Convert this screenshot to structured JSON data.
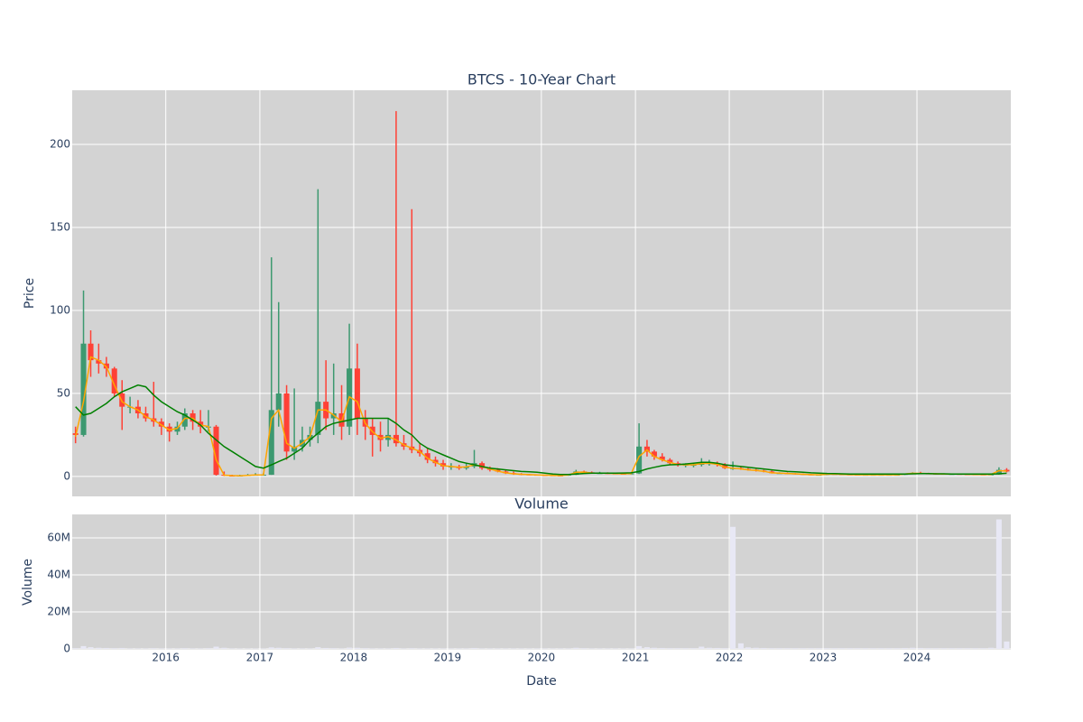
{
  "chart_data": {
    "type": "candlestick",
    "title": "BTCS - 10-Year Chart",
    "ylabel": "Price",
    "xlabel": "Date",
    "background": "#d3d3d3",
    "grid": true,
    "increasing_color": "#3d9970",
    "decreasing_color": "#ff4136",
    "x": [
      "2015-01",
      "2015-02",
      "2015-03",
      "2015-04",
      "2015-05",
      "2015-06",
      "2015-07",
      "2015-08",
      "2015-09",
      "2015-10",
      "2015-11",
      "2015-12",
      "2016-01",
      "2016-02",
      "2016-03",
      "2016-04",
      "2016-05",
      "2016-06",
      "2016-07",
      "2016-08",
      "2016-09",
      "2016-10",
      "2016-11",
      "2016-12",
      "2017-01",
      "2017-02",
      "2017-03",
      "2017-04",
      "2017-05",
      "2017-06",
      "2017-07",
      "2017-08",
      "2017-09",
      "2017-10",
      "2017-11",
      "2017-12",
      "2018-01",
      "2018-02",
      "2018-03",
      "2018-04",
      "2018-05",
      "2018-06",
      "2018-07",
      "2018-08",
      "2018-09",
      "2018-10",
      "2018-11",
      "2018-12",
      "2019-01",
      "2019-02",
      "2019-03",
      "2019-04",
      "2019-05",
      "2019-06",
      "2019-07",
      "2019-08",
      "2019-09",
      "2019-10",
      "2019-11",
      "2019-12",
      "2020-01",
      "2020-02",
      "2020-03",
      "2020-04",
      "2020-05",
      "2020-06",
      "2020-07",
      "2020-08",
      "2020-09",
      "2020-10",
      "2020-11",
      "2020-12",
      "2021-01",
      "2021-02",
      "2021-03",
      "2021-04",
      "2021-05",
      "2021-06",
      "2021-07",
      "2021-08",
      "2021-09",
      "2021-10",
      "2021-11",
      "2021-12",
      "2022-01",
      "2022-02",
      "2022-03",
      "2022-04",
      "2022-05",
      "2022-06",
      "2022-07",
      "2022-08",
      "2022-09",
      "2022-10",
      "2022-11",
      "2022-12",
      "2023-01",
      "2023-02",
      "2023-03",
      "2023-04",
      "2023-05",
      "2023-06",
      "2023-07",
      "2023-08",
      "2023-09",
      "2023-10",
      "2023-11",
      "2023-12",
      "2024-01",
      "2024-02",
      "2024-03",
      "2024-04",
      "2024-05",
      "2024-06",
      "2024-07",
      "2024-08",
      "2024-09",
      "2024-10",
      "2024-11",
      "2024-12"
    ],
    "open": [
      26,
      25,
      80,
      70,
      68,
      65,
      50,
      42,
      42,
      38,
      35,
      33,
      30,
      27,
      30,
      38,
      33,
      30,
      30,
      1,
      0.5,
      0.3,
      0.5,
      0.8,
      1,
      1,
      40,
      50,
      15,
      18,
      22,
      25,
      45,
      35,
      38,
      30,
      65,
      35,
      30,
      25,
      22,
      25,
      20,
      18,
      16,
      14,
      10,
      8,
      6,
      6,
      5,
      6,
      8,
      5,
      4,
      3,
      2,
      1.5,
      1.2,
      1,
      0.8,
      0.7,
      0.6,
      0.5,
      1,
      3,
      2.5,
      2,
      2,
      1.8,
      1.6,
      1.5,
      1.8,
      18,
      15,
      12,
      10,
      8,
      7,
      7,
      7,
      8,
      8,
      7,
      5,
      5,
      4.5,
      4,
      3.5,
      3,
      2,
      2,
      1.8,
      1.5,
      1.2,
      1,
      1,
      1.5,
      1.4,
      1.2,
      1.1,
      1,
      1,
      1,
      1,
      1,
      1,
      1.5,
      2,
      1.8,
      1.7,
      1.6,
      1.5,
      1.5,
      1.4,
      1.3,
      1.2,
      1.1,
      1.2,
      4
    ],
    "high": [
      30,
      112,
      88,
      80,
      72,
      66,
      58,
      48,
      46,
      42,
      57,
      35,
      32,
      33,
      41,
      40,
      40,
      40,
      31,
      3,
      1,
      1,
      1.5,
      2,
      2,
      132,
      105,
      55,
      53,
      30,
      30,
      173,
      70,
      68,
      55,
      92,
      80,
      40,
      35,
      33,
      35,
      220,
      25,
      161,
      20,
      17,
      12,
      10,
      8,
      7,
      8,
      16,
      9,
      6,
      5,
      4,
      3,
      2,
      1.5,
      1.2,
      1,
      0.9,
      0.8,
      1.5,
      4,
      3.5,
      3,
      2.8,
      2.5,
      2.2,
      2,
      2.5,
      32,
      22,
      16,
      14,
      11,
      9,
      8,
      8,
      11,
      10,
      9,
      8,
      9,
      6,
      5,
      4.5,
      4,
      3.5,
      2.5,
      2.4,
      2,
      1.8,
      1.5,
      1.3,
      2.2,
      1.8,
      1.6,
      1.4,
      1.3,
      1.2,
      1.2,
      1.2,
      1.2,
      1.2,
      1.8,
      2.5,
      2.8,
      2.2,
      2,
      1.9,
      1.8,
      1.7,
      1.6,
      1.5,
      1.4,
      1.4,
      5.5,
      5
    ],
    "low": [
      20,
      24,
      60,
      62,
      60,
      48,
      28,
      38,
      35,
      33,
      30,
      25,
      21,
      25,
      28,
      28,
      26,
      27,
      0.5,
      0.2,
      0.1,
      0.2,
      0.3,
      0.5,
      0.5,
      1,
      30,
      10,
      10,
      15,
      18,
      20,
      28,
      25,
      22,
      25,
      25,
      22,
      12,
      15,
      18,
      18,
      16,
      14,
      12,
      8,
      6,
      4,
      4,
      4,
      4,
      5,
      4,
      3,
      2.5,
      1.5,
      1,
      0.8,
      0.7,
      0.5,
      0.5,
      0.4,
      0.2,
      0.4,
      0.9,
      2,
      1.8,
      1.6,
      1.5,
      1.3,
      1.2,
      1.2,
      1.5,
      12,
      10,
      9,
      7,
      6,
      5.5,
      5.5,
      6,
      6.5,
      6,
      4.5,
      4,
      4,
      3.5,
      3,
      2.5,
      1.8,
      1.6,
      1.5,
      1.2,
      1,
      0.8,
      0.8,
      0.9,
      1.2,
      1,
      0.9,
      0.9,
      0.8,
      0.8,
      0.8,
      0.8,
      0.8,
      0.9,
      1.4,
      1.5,
      1.5,
      1.4,
      1.3,
      1.3,
      1.2,
      1.1,
      1,
      1,
      1,
      1.1,
      2.5
    ],
    "close": [
      25,
      80,
      70,
      68,
      65,
      50,
      42,
      42,
      38,
      35,
      33,
      30,
      27,
      30,
      38,
      33,
      30,
      30,
      1,
      0.5,
      0.3,
      0.5,
      0.8,
      1,
      1,
      40,
      50,
      15,
      18,
      22,
      25,
      45,
      35,
      38,
      30,
      65,
      35,
      30,
      25,
      22,
      25,
      20,
      18,
      16,
      14,
      10,
      8,
      6,
      6,
      5,
      6,
      8,
      5,
      4,
      3,
      2,
      1.5,
      1.2,
      1,
      0.8,
      0.7,
      0.6,
      0.5,
      1,
      3,
      2.5,
      2,
      2,
      1.8,
      1.6,
      1.5,
      1.8,
      18,
      15,
      12,
      10,
      8,
      7,
      7,
      7,
      8,
      8,
      7,
      5,
      5,
      4.5,
      4,
      3.5,
      3,
      2,
      2,
      1.8,
      1.5,
      1.2,
      1,
      1,
      1.5,
      1.4,
      1.2,
      1.1,
      1,
      1,
      1,
      1,
      1,
      1,
      1.5,
      2,
      1.8,
      1.7,
      1.6,
      1.5,
      1.5,
      1.4,
      1.3,
      1.2,
      1.1,
      1.2,
      4,
      3
    ],
    "lines": [
      {
        "color": "#ffa500",
        "values": [
          24,
          45,
          72,
          70,
          66,
          55,
          45,
          42,
          40,
          36,
          34,
          31,
          28,
          29,
          35,
          35,
          31,
          30,
          10,
          0.8,
          0.5,
          0.4,
          0.6,
          0.9,
          1,
          35,
          40,
          20,
          17,
          20,
          24,
          40,
          40,
          37,
          33,
          48,
          45,
          32,
          27,
          23,
          24,
          22,
          19,
          17,
          15,
          11,
          8.5,
          6.5,
          6,
          5.5,
          5.8,
          7,
          6,
          4.5,
          3.2,
          2.2,
          1.6,
          1.3,
          1.1,
          0.9,
          0.8,
          0.6,
          0.5,
          0.9,
          2.5,
          2.6,
          2.1,
          2,
          1.9,
          1.7,
          1.6,
          1.7,
          12,
          16,
          12,
          10,
          8.5,
          7.2,
          7,
          7,
          7.8,
          8,
          7.3,
          5.5,
          5,
          4.6,
          4,
          3.6,
          3.1,
          2.2,
          2,
          1.8,
          1.6,
          1.3,
          1.1,
          1,
          1.3,
          1.4,
          1.25,
          1.1,
          1,
          1,
          1,
          1,
          1,
          1,
          1.4,
          1.9,
          1.85,
          1.7,
          1.6,
          1.5,
          1.5,
          1.4,
          1.3,
          1.2,
          1.15,
          1.2,
          3.5,
          3.2
        ]
      },
      {
        "color": "#008000",
        "values": [
          42,
          37,
          38,
          41,
          44,
          48,
          51,
          53,
          55,
          54,
          49,
          45,
          42,
          39,
          37,
          34,
          31,
          26,
          22,
          18,
          15,
          12,
          9,
          6,
          5,
          7,
          9,
          11,
          14,
          17,
          22,
          26,
          30,
          32,
          33,
          34,
          35,
          35,
          35,
          35,
          35,
          32,
          28,
          25,
          20,
          17,
          15,
          13,
          11,
          9,
          8,
          7,
          6,
          5,
          4.5,
          4,
          3.5,
          3,
          2.8,
          2.5,
          2,
          1.5,
          1.2,
          1.2,
          1.5,
          1.8,
          2,
          2,
          2,
          2,
          2.1,
          2.2,
          3,
          4.5,
          5.5,
          6.5,
          7,
          7.2,
          7.5,
          8,
          8.5,
          8.5,
          8,
          7,
          6.5,
          6,
          5.5,
          5,
          4.5,
          4,
          3.5,
          3,
          2.8,
          2.5,
          2.2,
          2,
          1.8,
          1.7,
          1.6,
          1.5,
          1.5,
          1.4,
          1.4,
          1.4,
          1.4,
          1.4,
          1.5,
          1.6,
          1.7,
          1.7,
          1.6,
          1.6,
          1.5,
          1.5,
          1.5,
          1.4,
          1.4,
          1.4,
          1.6,
          1.9
        ]
      }
    ],
    "xlim": [
      "2015-01-02",
      "2024-12-31"
    ],
    "xticks": [
      "2016",
      "2017",
      "2018",
      "2019",
      "2020",
      "2021",
      "2022",
      "2023",
      "2024"
    ],
    "ylim": [
      -12,
      232.6
    ],
    "yticks": [
      0,
      50,
      100,
      150,
      200
    ],
    "volume": {
      "title": "Volume",
      "ylabel": "Volume",
      "color": "#e8e8f5",
      "values": [
        400000,
        1500000,
        900000,
        600000,
        500000,
        400000,
        500000,
        300000,
        300000,
        300000,
        400000,
        300000,
        300000,
        300000,
        400000,
        300000,
        300000,
        400000,
        1200000,
        600000,
        300000,
        200000,
        200000,
        200000,
        200000,
        800000,
        600000,
        400000,
        300000,
        300000,
        300000,
        900000,
        500000,
        400000,
        300000,
        700000,
        600000,
        400000,
        300000,
        300000,
        300000,
        500000,
        300000,
        400000,
        300000,
        300000,
        300000,
        300000,
        300000,
        300000,
        300000,
        500000,
        300000,
        300000,
        300000,
        300000,
        300000,
        300000,
        300000,
        300000,
        300000,
        300000,
        300000,
        300000,
        600000,
        400000,
        300000,
        300000,
        300000,
        300000,
        300000,
        300000,
        1500000,
        900000,
        600000,
        500000,
        400000,
        400000,
        400000,
        400000,
        1200000,
        600000,
        500000,
        400000,
        66000000,
        3000000,
        800000,
        600000,
        500000,
        400000,
        400000,
        400000,
        400000,
        400000,
        400000,
        400000,
        400000,
        400000,
        400000,
        400000,
        400000,
        400000,
        400000,
        400000,
        400000,
        400000,
        500000,
        600000,
        500000,
        400000,
        400000,
        400000,
        400000,
        400000,
        400000,
        400000,
        400000,
        600000,
        70000000,
        4000000
      ],
      "ylim": [
        -500000,
        72700000
      ],
      "yticks": [
        0,
        {
          "value": 20000000,
          "label": "20M"
        },
        {
          "value": 40000000,
          "label": "40M"
        },
        {
          "value": 60000000,
          "label": "60M"
        }
      ]
    }
  }
}
